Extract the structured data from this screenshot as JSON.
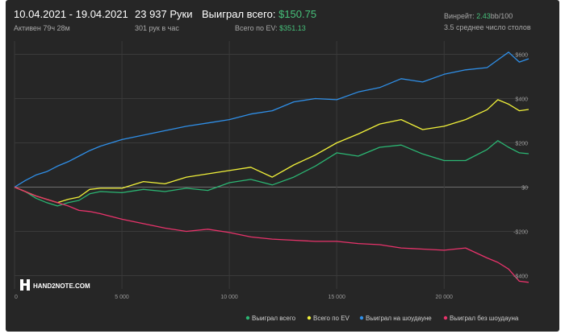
{
  "header": {
    "date_range": "10.04.2021 - 19.04.2021",
    "active_time": "Активен 79ч 28м",
    "hands": "23 937 Руки",
    "hands_per_hour": "301 рук в час",
    "won_total_label": "Выиграл всего:",
    "won_total_value": "$150.75",
    "ev_label": "Всего по EV:",
    "ev_value": "$351.13",
    "winrate_label": "Винрейт:",
    "winrate_value": "2.43",
    "winrate_suffix": "bb/100",
    "avg_tables": "3.5 среднее число столов"
  },
  "logo": {
    "text": "HAND2NOTE.COM"
  },
  "colors": {
    "background": "#262626",
    "grid": "#3a3a3a",
    "zero_line": "#6e6e6e",
    "won_total": "#2bb673",
    "ev": "#f2f23a",
    "showdown": "#2f8fe8",
    "non_showdown": "#e8336b"
  },
  "chart_data": {
    "type": "line",
    "xlim": [
      0,
      23937
    ],
    "ylim": [
      -460,
      660
    ],
    "x_ticks": [
      0,
      5000,
      10000,
      15000,
      20000
    ],
    "x_tick_labels": [
      "0",
      "5 000",
      "10 000",
      "15 000",
      "20 000"
    ],
    "y_ticks": [
      600,
      400,
      200,
      0,
      -200,
      -400
    ],
    "y_tick_labels": [
      "$600",
      "$400",
      "$200",
      "$0",
      "-$200",
      "-$400"
    ],
    "legend_position": "bottom-right",
    "grid": true,
    "series": [
      {
        "name": "Выиграл всего",
        "color": "#2bb673",
        "x": [
          0,
          500,
          1000,
          1500,
          2000,
          2500,
          3000,
          3500,
          4000,
          5000,
          6000,
          7000,
          8000,
          9000,
          10000,
          11000,
          12000,
          13000,
          14000,
          15000,
          16000,
          17000,
          18000,
          19000,
          20000,
          21000,
          22000,
          22500,
          23000,
          23500,
          23937
        ],
        "y": [
          0,
          -20,
          -50,
          -70,
          -85,
          -70,
          -60,
          -30,
          -20,
          -25,
          -10,
          -20,
          -5,
          -15,
          20,
          35,
          10,
          45,
          95,
          155,
          140,
          180,
          190,
          150,
          120,
          120,
          170,
          210,
          180,
          155,
          151
        ]
      },
      {
        "name": "Всего по EV",
        "color": "#f2f23a",
        "x": [
          0,
          500,
          1000,
          1500,
          2000,
          2500,
          3000,
          3500,
          4000,
          5000,
          6000,
          7000,
          8000,
          9000,
          10000,
          11000,
          12000,
          13000,
          14000,
          15000,
          16000,
          17000,
          18000,
          19000,
          20000,
          21000,
          22000,
          22500,
          23000,
          23500,
          23937
        ],
        "y": [
          0,
          -20,
          -40,
          -55,
          -70,
          -55,
          -45,
          -10,
          -5,
          -5,
          25,
          15,
          45,
          60,
          75,
          90,
          45,
          100,
          145,
          200,
          240,
          285,
          305,
          260,
          275,
          305,
          350,
          395,
          375,
          345,
          351
        ]
      },
      {
        "name": "Выиграл на шоудауне",
        "color": "#2f8fe8",
        "x": [
          0,
          500,
          1000,
          1500,
          2000,
          2500,
          3000,
          3500,
          4000,
          5000,
          6000,
          7000,
          8000,
          9000,
          10000,
          11000,
          12000,
          13000,
          14000,
          15000,
          16000,
          17000,
          18000,
          19000,
          20000,
          21000,
          22000,
          22500,
          23000,
          23500,
          23937
        ],
        "y": [
          0,
          30,
          55,
          70,
          95,
          115,
          140,
          165,
          185,
          215,
          235,
          255,
          275,
          290,
          305,
          330,
          345,
          385,
          400,
          395,
          430,
          450,
          490,
          475,
          510,
          530,
          540,
          575,
          610,
          565,
          580
        ]
      },
      {
        "name": "Выиграл без шоудауна",
        "color": "#e8336b",
        "x": [
          0,
          500,
          1000,
          1500,
          2000,
          2500,
          3000,
          3500,
          4000,
          5000,
          6000,
          7000,
          8000,
          9000,
          10000,
          11000,
          12000,
          13000,
          14000,
          15000,
          16000,
          17000,
          18000,
          19000,
          20000,
          21000,
          22000,
          22500,
          23000,
          23500,
          23937
        ],
        "y": [
          0,
          -20,
          -40,
          -55,
          -70,
          -85,
          -105,
          -110,
          -120,
          -145,
          -165,
          -185,
          -200,
          -190,
          -205,
          -225,
          -235,
          -240,
          -245,
          -245,
          -255,
          -260,
          -275,
          -280,
          -285,
          -275,
          -320,
          -340,
          -370,
          -425,
          -430
        ]
      }
    ]
  }
}
